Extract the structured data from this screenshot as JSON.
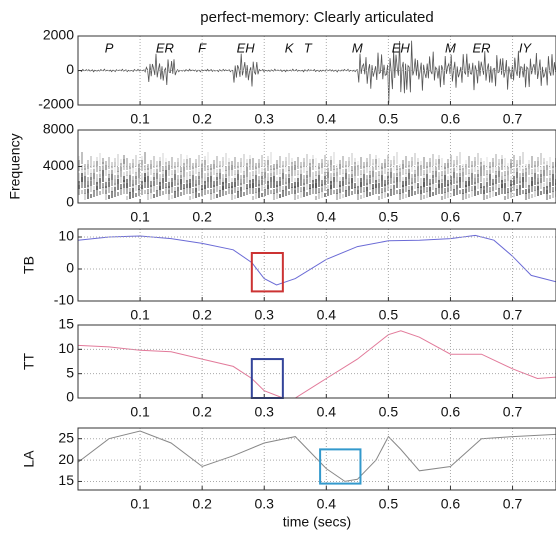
{
  "chart_data": [
    {
      "type": "waveform",
      "title": "perfect-memory: Clearly articulated",
      "xlim": [
        0,
        0.77
      ],
      "xticks": [
        0.1,
        0.2,
        0.3,
        0.4,
        0.5,
        0.6,
        0.7
      ],
      "ylim": [
        -2000,
        2000
      ],
      "yticks": [
        -2000,
        0,
        2000
      ],
      "grid": true,
      "color": "#555555",
      "annotations": [
        {
          "text": "P",
          "x": 0.05
        },
        {
          "text": "ER",
          "x": 0.14
        },
        {
          "text": "F",
          "x": 0.2
        },
        {
          "text": "EH",
          "x": 0.27
        },
        {
          "text": "K",
          "x": 0.34
        },
        {
          "text": "T",
          "x": 0.37
        },
        {
          "text": "M",
          "x": 0.45
        },
        {
          "text": "EH",
          "x": 0.52
        },
        {
          "text": "M",
          "x": 0.6
        },
        {
          "text": "ER",
          "x": 0.65
        },
        {
          "text": "IY",
          "x": 0.72
        }
      ]
    },
    {
      "type": "spectrogram",
      "ylabel": "Frequency",
      "xlim": [
        0,
        0.77
      ],
      "xticks": [
        0.1,
        0.2,
        0.3,
        0.4,
        0.5,
        0.6,
        0.7
      ],
      "ylim": [
        0,
        8000
      ],
      "yticks": [
        0,
        4000,
        8000
      ],
      "grid": true,
      "color": "#333333"
    },
    {
      "type": "line",
      "ylabel": "TB",
      "xlim": [
        0,
        0.77
      ],
      "xticks": [
        0.1,
        0.2,
        0.3,
        0.4,
        0.5,
        0.6,
        0.7
      ],
      "ylim": [
        -10,
        12.5
      ],
      "yticks": [
        -10,
        0,
        10
      ],
      "grid": true,
      "x": [
        0,
        0.05,
        0.1,
        0.15,
        0.2,
        0.25,
        0.28,
        0.3,
        0.32,
        0.35,
        0.4,
        0.45,
        0.5,
        0.55,
        0.6,
        0.64,
        0.67,
        0.7,
        0.73,
        0.77
      ],
      "series": [
        {
          "color": "#6b6bd6",
          "values": [
            9,
            10,
            10.3,
            9.5,
            8,
            6,
            2,
            -3,
            -5,
            -3,
            3,
            7,
            8.8,
            9,
            9.5,
            10.5,
            9,
            4,
            -2,
            -4
          ]
        }
      ],
      "highlight": {
        "x": [
          0.28,
          0.33
        ],
        "y": [
          -7,
          5
        ],
        "color": "#cc3333"
      }
    },
    {
      "type": "line",
      "ylabel": "TT",
      "xlim": [
        0,
        0.77
      ],
      "xticks": [
        0.1,
        0.2,
        0.3,
        0.4,
        0.5,
        0.6,
        0.7
      ],
      "ylim": [
        0,
        15
      ],
      "yticks": [
        0,
        5,
        10,
        15
      ],
      "grid": true,
      "x": [
        0,
        0.05,
        0.1,
        0.15,
        0.2,
        0.25,
        0.28,
        0.3,
        0.33,
        0.35,
        0.4,
        0.45,
        0.5,
        0.52,
        0.55,
        0.6,
        0.65,
        0.7,
        0.74,
        0.77
      ],
      "series": [
        {
          "color": "#e27a9a",
          "values": [
            10.8,
            10.5,
            9.8,
            9.5,
            8,
            6.5,
            4,
            1.5,
            0,
            0,
            4,
            8,
            13,
            13.8,
            12.5,
            9,
            9,
            6,
            4,
            4.3
          ]
        }
      ],
      "highlight": {
        "x": [
          0.28,
          0.33
        ],
        "y": [
          0,
          8
        ],
        "color": "#33449a"
      }
    },
    {
      "type": "line",
      "ylabel": "LA",
      "xlabel": "time (secs)",
      "xlim": [
        0,
        0.77
      ],
      "xticks": [
        0.1,
        0.2,
        0.3,
        0.4,
        0.5,
        0.6,
        0.7
      ],
      "ylim": [
        13,
        27.5
      ],
      "yticks": [
        15,
        20,
        25
      ],
      "grid": true,
      "x": [
        0,
        0.05,
        0.1,
        0.15,
        0.2,
        0.25,
        0.3,
        0.35,
        0.4,
        0.43,
        0.45,
        0.48,
        0.5,
        0.52,
        0.55,
        0.6,
        0.65,
        0.7,
        0.77
      ],
      "series": [
        {
          "color": "#888888",
          "values": [
            19.5,
            25,
            26.8,
            24,
            18.5,
            21,
            24,
            25.5,
            18,
            15,
            15.5,
            20,
            25.5,
            22.5,
            17.5,
            18.5,
            25,
            25.5,
            26
          ]
        }
      ],
      "highlight": {
        "x": [
          0.39,
          0.455
        ],
        "y": [
          14.5,
          22.5
        ],
        "color": "#3399cc"
      }
    }
  ]
}
